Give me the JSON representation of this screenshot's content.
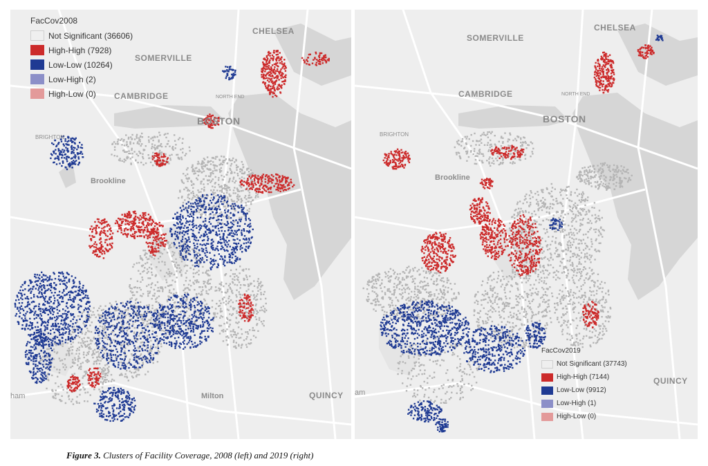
{
  "maps": [
    {
      "id": "left",
      "legend": {
        "title": "FacCov2008",
        "items": [
          {
            "label": "Not Significant (36606)",
            "color": "#efefef"
          },
          {
            "label": "High-High (7928)",
            "color": "#cc2a2a"
          },
          {
            "label": "Low-Low (10264)",
            "color": "#1f3a93"
          },
          {
            "label": "Low-High (2)",
            "color": "#8c8fc8"
          },
          {
            "label": "High-Low (0)",
            "color": "#e39a9a"
          }
        ]
      },
      "places": {
        "somerville": "SOMERVILLE",
        "chelsea": "CHELSEA",
        "cambridge": "CAMBRIDGE",
        "boston": "BOSTON",
        "north_end": "NORTH END",
        "brighton": "BRIGHTON",
        "brookline": "Brookline",
        "milton": "Milton",
        "quincy": "QUINCY",
        "dedham": "ham"
      }
    },
    {
      "id": "right",
      "legend": {
        "title": "FacCov2019",
        "items": [
          {
            "label": "Not Significant (37743)",
            "color": "#efefef"
          },
          {
            "label": "High-High (7144)",
            "color": "#cc2a2a"
          },
          {
            "label": "Low-Low (9912)",
            "color": "#1f3a93"
          },
          {
            "label": "Low-High (1)",
            "color": "#8c8fc8"
          },
          {
            "label": "High-Low (0)",
            "color": "#e39a9a"
          }
        ]
      },
      "places": {
        "somerville": "SOMERVILLE",
        "chelsea": "CHELSEA",
        "cambridge": "CAMBRIDGE",
        "boston": "BOSTON",
        "north_end": "NORTH END",
        "brighton": "BRIGHTON",
        "brookline": "Brookline",
        "quincy": "QUINCY",
        "dedham": "am"
      }
    }
  ],
  "caption": {
    "label": "Figure 3.",
    "text": " Clusters of Facility Coverage, 2008 (left) and 2019 (right)"
  },
  "colors": {
    "land": "#eeeeee",
    "water": "#d6d6d6",
    "road": "#ffffff",
    "park": "#e4e4e4",
    "not_significant": "#b5b5b5",
    "high_high": "#cc2a2a",
    "low_low": "#1f3a93"
  }
}
